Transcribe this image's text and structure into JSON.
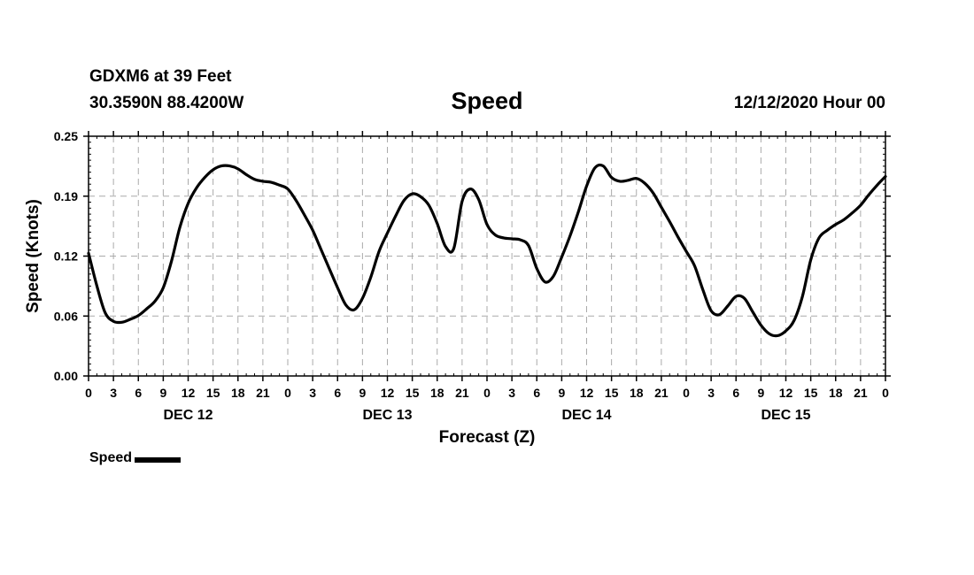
{
  "header": {
    "station": "GDXM6 at 39 Feet",
    "coords": "30.3590N 88.4200W",
    "title": "Speed",
    "run": "12/12/2020 Hour 00"
  },
  "chart_data": {
    "type": "line",
    "title": "Speed",
    "xlabel": "Forecast (Z)",
    "ylabel": "Speed (Knots)",
    "ylim": [
      0,
      0.25
    ],
    "yticks": [
      "0.00",
      "0.06",
      "0.12",
      "0.19",
      "0.25"
    ],
    "xlim": [
      0,
      96
    ],
    "xtick_labels": [
      "0",
      "3",
      "6",
      "9",
      "12",
      "15",
      "18",
      "21",
      "0",
      "3",
      "6",
      "9",
      "12",
      "15",
      "18",
      "21",
      "0",
      "3",
      "6",
      "9",
      "12",
      "15",
      "18",
      "21",
      "0",
      "3",
      "6",
      "9",
      "12",
      "15",
      "18",
      "21",
      "0"
    ],
    "day_labels": [
      {
        "label": "DEC 12",
        "hour": 12
      },
      {
        "label": "DEC 13",
        "hour": 36
      },
      {
        "label": "DEC 14",
        "hour": 60
      },
      {
        "label": "DEC 15",
        "hour": 84
      }
    ],
    "grid": true,
    "legend": "bottom-left",
    "series": [
      {
        "name": "Speed",
        "color": "#000000",
        "x": [
          0,
          1,
          2,
          3,
          4,
          5,
          6,
          7,
          8,
          9,
          10,
          11,
          12,
          13,
          14,
          15,
          16,
          17,
          18,
          19,
          20,
          21,
          22,
          23,
          24,
          25,
          26,
          27,
          28,
          29,
          30,
          31,
          32,
          33,
          34,
          35,
          36,
          37,
          38,
          39,
          40,
          41,
          42,
          43,
          44,
          45,
          46,
          47,
          48,
          49,
          50,
          51,
          52,
          53,
          54,
          55,
          56,
          57,
          58,
          59,
          60,
          61,
          62,
          63,
          64,
          65,
          66,
          67,
          68,
          69,
          70,
          71,
          72,
          73,
          74,
          75,
          76,
          77,
          78,
          79,
          80,
          81,
          82,
          83,
          84,
          85,
          86,
          87,
          88,
          89,
          90,
          91,
          92,
          93,
          94,
          95,
          96
        ],
        "values": [
          0.128,
          0.094,
          0.066,
          0.057,
          0.056,
          0.059,
          0.063,
          0.07,
          0.078,
          0.092,
          0.12,
          0.155,
          0.18,
          0.196,
          0.207,
          0.215,
          0.219,
          0.219,
          0.216,
          0.21,
          0.205,
          0.203,
          0.202,
          0.199,
          0.195,
          0.183,
          0.168,
          0.152,
          0.132,
          0.112,
          0.092,
          0.074,
          0.069,
          0.081,
          0.103,
          0.13,
          0.149,
          0.167,
          0.183,
          0.19,
          0.187,
          0.178,
          0.159,
          0.135,
          0.133,
          0.182,
          0.195,
          0.184,
          0.158,
          0.147,
          0.144,
          0.143,
          0.142,
          0.136,
          0.112,
          0.098,
          0.104,
          0.124,
          0.146,
          0.171,
          0.198,
          0.217,
          0.219,
          0.207,
          0.203,
          0.204,
          0.206,
          0.201,
          0.191,
          0.176,
          0.161,
          0.145,
          0.13,
          0.115,
          0.09,
          0.068,
          0.064,
          0.073,
          0.083,
          0.081,
          0.067,
          0.053,
          0.044,
          0.042,
          0.047,
          0.058,
          0.083,
          0.121,
          0.144,
          0.152,
          0.158,
          0.163,
          0.17,
          0.178,
          0.189,
          0.199,
          0.208
        ]
      }
    ]
  },
  "legend": {
    "label": "Speed"
  }
}
